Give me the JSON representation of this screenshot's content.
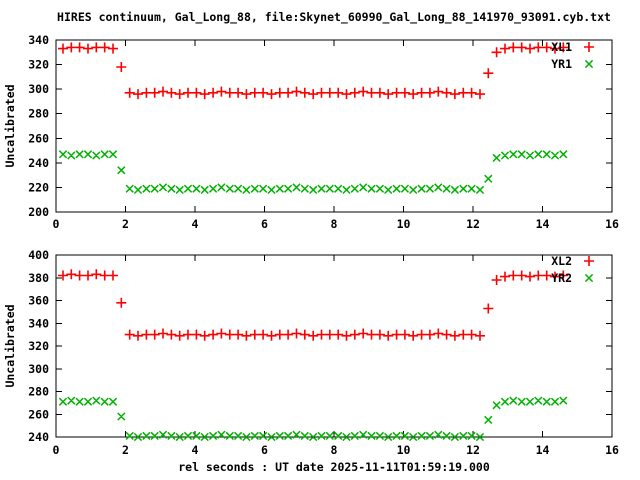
{
  "title": "HIRES continuum, Gal_Long_88, file:Skynet_60990_Gal_Long_88_141970_93091.cyb.txt",
  "footer": "rel seconds : UT date 2025-11-11T01:59:19.000",
  "colors": {
    "background": "#ffffff",
    "axis": "#000000",
    "red_series": "#ff0000",
    "green_series": "#00b000"
  },
  "chart_data": [
    {
      "type": "scatter",
      "panel": "top",
      "ylabel": "Uncalibrated",
      "xlabel": "",
      "xlim": [
        0,
        16
      ],
      "ylim": [
        200,
        340
      ],
      "xticks": [
        0,
        2,
        4,
        6,
        8,
        10,
        12,
        14,
        16
      ],
      "yticks": [
        200,
        220,
        240,
        260,
        280,
        300,
        320,
        340
      ],
      "grid": false,
      "legend_position": "top-right-inside",
      "x": [
        0.2,
        0.44,
        0.68,
        0.92,
        1.16,
        1.4,
        1.64,
        1.88,
        2.12,
        2.36,
        2.6,
        2.84,
        3.08,
        3.32,
        3.56,
        3.8,
        4.04,
        4.28,
        4.52,
        4.76,
        5,
        5.24,
        5.48,
        5.72,
        5.96,
        6.2,
        6.44,
        6.68,
        6.92,
        7.16,
        7.4,
        7.64,
        7.88,
        8.12,
        8.36,
        8.6,
        8.84,
        9.08,
        9.32,
        9.56,
        9.8,
        10.04,
        10.28,
        10.52,
        10.76,
        11,
        11.24,
        11.48,
        11.72,
        11.96,
        12.2,
        12.44,
        12.68,
        12.92,
        13.16,
        13.4,
        13.64,
        13.88,
        14.12,
        14.36,
        14.6
      ],
      "series": [
        {
          "name": "XL1",
          "marker": "plus",
          "color": "#ff0000",
          "values": [
            333,
            334,
            334,
            333,
            334,
            334,
            333,
            318,
            297,
            296,
            297,
            297,
            298,
            297,
            296,
            297,
            297,
            296,
            297,
            298,
            297,
            297,
            296,
            297,
            297,
            296,
            297,
            297,
            298,
            297,
            296,
            297,
            297,
            297,
            296,
            297,
            298,
            297,
            297,
            296,
            297,
            297,
            296,
            297,
            297,
            298,
            297,
            296,
            297,
            297,
            296,
            313,
            330,
            333,
            334,
            334,
            333,
            334,
            334,
            333,
            334
          ]
        },
        {
          "name": "YR1",
          "marker": "cross",
          "color": "#00b000",
          "values": [
            247,
            246,
            247,
            247,
            246,
            247,
            247,
            234,
            219,
            218,
            219,
            219,
            220,
            219,
            218,
            219,
            219,
            218,
            219,
            220,
            219,
            219,
            218,
            219,
            219,
            218,
            219,
            219,
            220,
            219,
            218,
            219,
            219,
            219,
            218,
            219,
            220,
            219,
            219,
            218,
            219,
            219,
            218,
            219,
            219,
            220,
            219,
            218,
            219,
            219,
            218,
            227,
            244,
            246,
            247,
            247,
            246,
            247,
            247,
            246,
            247
          ]
        }
      ]
    },
    {
      "type": "scatter",
      "panel": "bottom",
      "ylabel": "Uncalibrated",
      "xlabel": "rel seconds : UT date 2025-11-11T01:59:19.000",
      "xlim": [
        0,
        16
      ],
      "ylim": [
        240,
        400
      ],
      "xticks": [
        0,
        2,
        4,
        6,
        8,
        10,
        12,
        14,
        16
      ],
      "yticks": [
        240,
        260,
        280,
        300,
        320,
        340,
        360,
        380,
        400
      ],
      "grid": false,
      "legend_position": "top-right-inside",
      "x": [
        0.2,
        0.44,
        0.68,
        0.92,
        1.16,
        1.4,
        1.64,
        1.88,
        2.12,
        2.36,
        2.6,
        2.84,
        3.08,
        3.32,
        3.56,
        3.8,
        4.04,
        4.28,
        4.52,
        4.76,
        5,
        5.24,
        5.48,
        5.72,
        5.96,
        6.2,
        6.44,
        6.68,
        6.92,
        7.16,
        7.4,
        7.64,
        7.88,
        8.12,
        8.36,
        8.6,
        8.84,
        9.08,
        9.32,
        9.56,
        9.8,
        10.04,
        10.28,
        10.52,
        10.76,
        11,
        11.24,
        11.48,
        11.72,
        11.96,
        12.2,
        12.44,
        12.68,
        12.92,
        13.16,
        13.4,
        13.64,
        13.88,
        14.12,
        14.36,
        14.6
      ],
      "series": [
        {
          "name": "XL2",
          "marker": "plus",
          "color": "#ff0000",
          "values": [
            382,
            383,
            382,
            382,
            383,
            382,
            382,
            358,
            330,
            329,
            330,
            330,
            331,
            330,
            329,
            330,
            330,
            329,
            330,
            331,
            330,
            330,
            329,
            330,
            330,
            329,
            330,
            330,
            331,
            330,
            329,
            330,
            330,
            330,
            329,
            330,
            331,
            330,
            330,
            329,
            330,
            330,
            329,
            330,
            330,
            331,
            330,
            329,
            330,
            330,
            329,
            353,
            378,
            381,
            382,
            382,
            381,
            382,
            382,
            381,
            382
          ]
        },
        {
          "name": "YR2",
          "marker": "cross",
          "color": "#00b000",
          "values": [
            271,
            272,
            271,
            271,
            272,
            271,
            271,
            258,
            241,
            240,
            241,
            241,
            242,
            241,
            240,
            241,
            241,
            240,
            241,
            242,
            241,
            241,
            240,
            241,
            241,
            240,
            241,
            241,
            242,
            241,
            240,
            241,
            241,
            241,
            240,
            241,
            242,
            241,
            241,
            240,
            241,
            241,
            240,
            241,
            241,
            242,
            241,
            240,
            241,
            241,
            240,
            255,
            268,
            271,
            272,
            271,
            271,
            272,
            271,
            271,
            272
          ]
        }
      ]
    }
  ]
}
